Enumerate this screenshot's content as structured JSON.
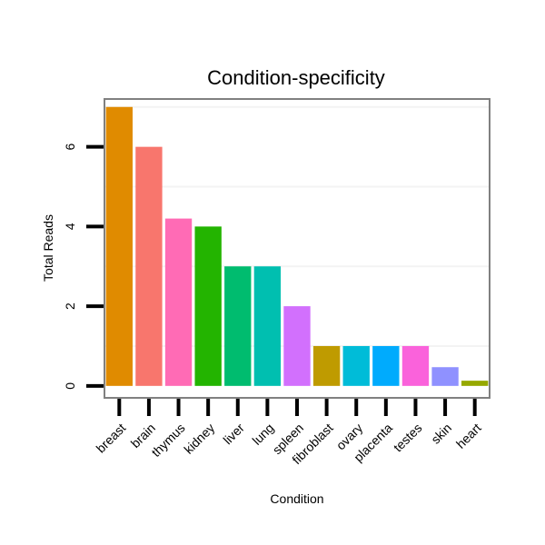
{
  "chart_data": {
    "type": "bar",
    "title": "Condition-specificity",
    "xlabel": "Condition",
    "ylabel": "Total Reads",
    "categories": [
      "breast",
      "brain",
      "thymus",
      "kidney",
      "liver",
      "lung",
      "spleen",
      "fibroblast",
      "ovary",
      "placenta",
      "testes",
      "skin",
      "heart"
    ],
    "values": [
      7,
      6,
      4.2,
      4,
      3,
      3,
      2,
      1,
      1,
      1,
      1,
      0.47,
      0.13
    ],
    "colors": [
      "#E08B00",
      "#F8766D",
      "#FF6BB5",
      "#23B400",
      "#00BC6F",
      "#00BFB0",
      "#D270FD",
      "#BF9B00",
      "#00BCD8",
      "#00ABFD",
      "#FA62DB",
      "#8F91FF",
      "#96A800"
    ],
    "ylim": [
      -0.3,
      7.2
    ],
    "yticks": [
      0,
      2,
      4,
      6
    ],
    "grid": true,
    "legend": "none"
  }
}
